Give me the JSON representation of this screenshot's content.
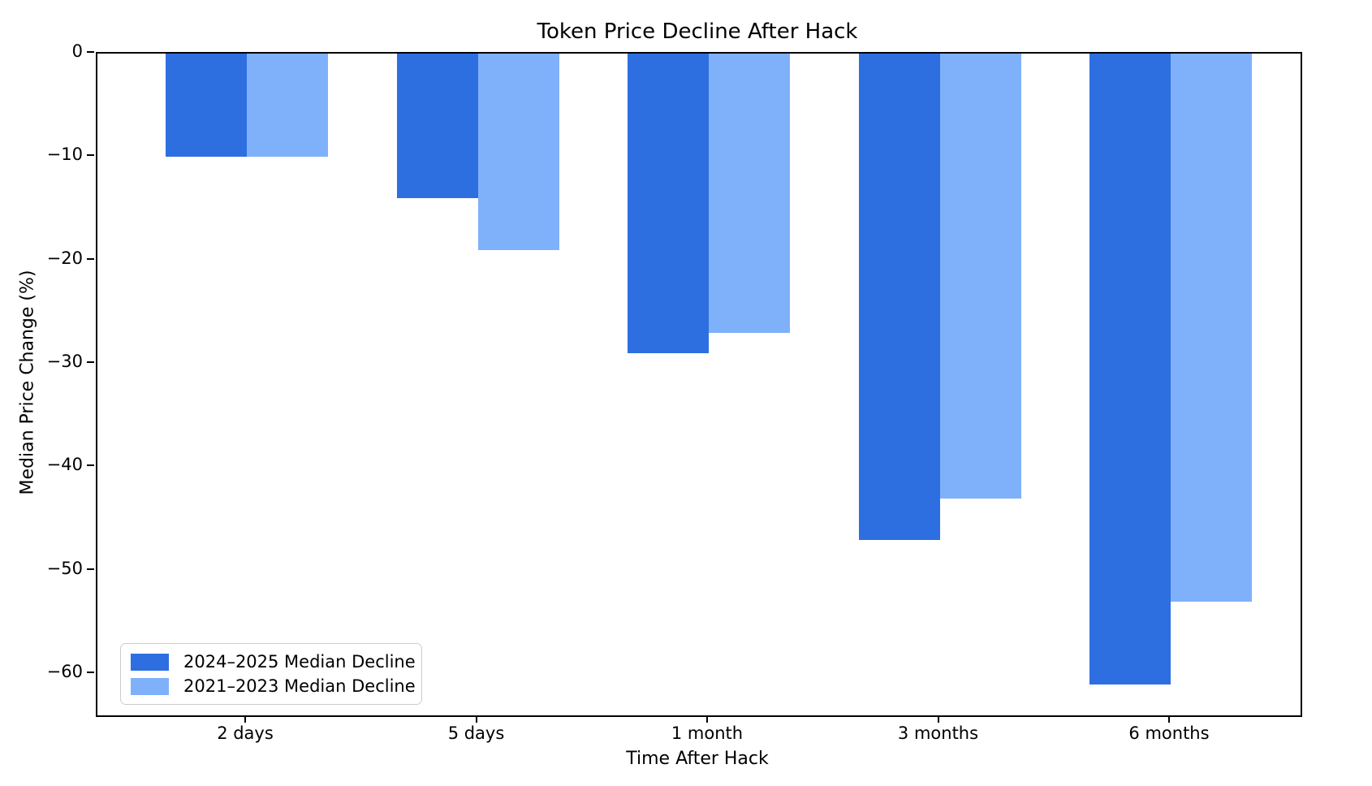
{
  "chart_data": {
    "type": "bar",
    "title": "Token Price Decline After Hack",
    "xlabel": "Time After Hack",
    "ylabel": "Median Price Change (%)",
    "categories": [
      "2 days",
      "5 days",
      "1 month",
      "3 months",
      "6 months"
    ],
    "series": [
      {
        "name": "2024–2025 Median Decline",
        "color": "#2d6fe0",
        "values": [
          -10,
          -14,
          -29,
          -47,
          -61
        ]
      },
      {
        "name": "2021–2023 Median Decline",
        "color": "#7fb1fa",
        "values": [
          -10,
          -19,
          -27,
          -43,
          -53
        ]
      }
    ],
    "ylim": [
      -64,
      0
    ],
    "yticks": [
      {
        "value": 0,
        "label": "0"
      },
      {
        "value": -10,
        "label": "−10"
      },
      {
        "value": -20,
        "label": "−20"
      },
      {
        "value": -30,
        "label": "−30"
      },
      {
        "value": -40,
        "label": "−40"
      },
      {
        "value": -50,
        "label": "−50"
      },
      {
        "value": -60,
        "label": "−60"
      }
    ],
    "legend_position": "lower-left",
    "grid": false,
    "background": "#ffffff"
  }
}
